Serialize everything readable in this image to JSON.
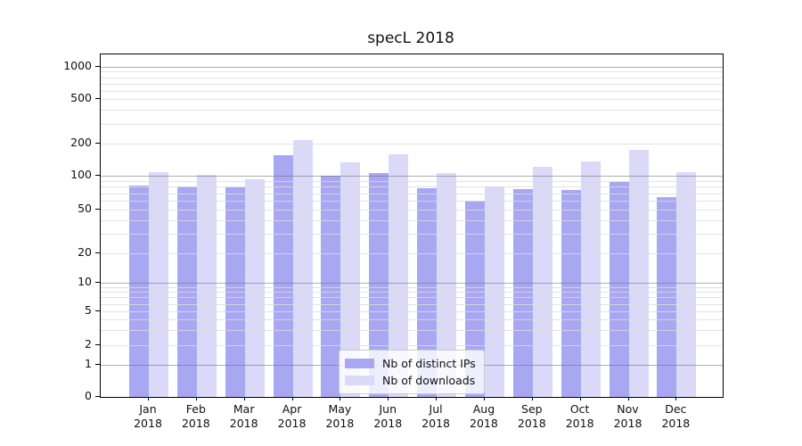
{
  "title": "specL 2018",
  "legend": {
    "items": [
      {
        "label": "Nb of distinct IPs",
        "color": "#a8a8f2"
      },
      {
        "label": "Nb of downloads",
        "color": "#dadaf8"
      }
    ]
  },
  "colors": {
    "bar_distinct_ips": "#a8a8f2",
    "bar_downloads": "#dadaf8",
    "grid_major": "#b0b0b0",
    "grid_minor": "#e4e4e4",
    "axis": "#000000"
  },
  "chart_data": {
    "type": "bar",
    "title": "specL 2018",
    "categories": [
      "Jan 2018",
      "Feb 2018",
      "Mar 2018",
      "Apr 2018",
      "May 2018",
      "Jun 2018",
      "Jul 2018",
      "Aug 2018",
      "Sep 2018",
      "Oct 2018",
      "Nov 2018",
      "Dec 2018"
    ],
    "series": [
      {
        "name": "Nb of distinct IPs",
        "color": "#a8a8f2",
        "values": [
          82,
          80,
          79,
          155,
          100,
          107,
          78,
          60,
          76,
          75,
          88,
          64
        ]
      },
      {
        "name": "Nb of downloads",
        "color": "#dadaf8",
        "values": [
          109,
          102,
          93,
          215,
          134,
          160,
          107,
          80,
          122,
          135,
          176,
          108
        ]
      }
    ],
    "xlabel": "",
    "ylabel": "",
    "yscale": "symlog",
    "yticks": [
      0,
      1,
      2,
      5,
      10,
      20,
      50,
      100,
      200,
      500,
      1000
    ],
    "ylim": [
      0,
      1300
    ],
    "grid": true,
    "legend_position": "lower center"
  }
}
